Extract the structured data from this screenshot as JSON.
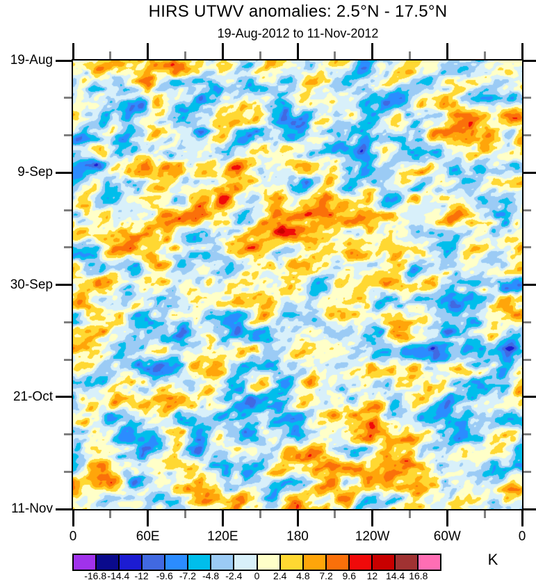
{
  "chart_data": {
    "type": "heatmap",
    "title": "HIRS UTWV anomalies: 2.5°N - 17.5°N",
    "subtitle": "19-Aug-2012 to 11-Nov-2012",
    "units_label": "K",
    "x_axis": {
      "tick_labels": [
        "0",
        "60E",
        "120E",
        "180",
        "120W",
        "60W",
        "0"
      ],
      "minor_ticks_between_majors": 1
    },
    "y_axis": {
      "tick_labels": [
        "19-Aug",
        "9-Sep",
        "30-Sep",
        "21-Oct",
        "11-Nov"
      ],
      "minor_ticks_between_majors": 2
    },
    "colorbar": {
      "boundary_labels": [
        "-16.8",
        "-14.4",
        "-12",
        "-9.6",
        "-7.2",
        "-4.8",
        "-2.4",
        "0",
        "2.4",
        "4.8",
        "7.2",
        "9.6",
        "12",
        "14.4",
        "16.8"
      ],
      "levels": [
        -16.8,
        -14.4,
        -12,
        -9.6,
        -7.2,
        -4.8,
        -2.4,
        0,
        2.4,
        4.8,
        7.2,
        9.6,
        12,
        14.4,
        16.8
      ],
      "bin_width": 2.4,
      "colors": [
        "#A032EB",
        "#0A0A8C",
        "#1C1CD2",
        "#4169E1",
        "#2B8CFF",
        "#00BEEB",
        "#9BCBF5",
        "#D8F0FA",
        "#FFFFC8",
        "#FFD832",
        "#FFA50A",
        "#FA700A",
        "#F00A0A",
        "#C80000",
        "#A03232",
        "#FF6EB4"
      ]
    },
    "axis_colors": {
      "major_tick": "#000000",
      "minor_tick": "#7f7f7f",
      "frame": "#000000"
    },
    "field_render": {
      "seed": 20120819,
      "shear": 0.32,
      "amplitude": 16.5,
      "octaves": [
        [
          110,
          80,
          0.45
        ],
        [
          34,
          24,
          1.0
        ],
        [
          16,
          12,
          0.55
        ],
        [
          8,
          6,
          0.3
        ]
      ]
    }
  }
}
